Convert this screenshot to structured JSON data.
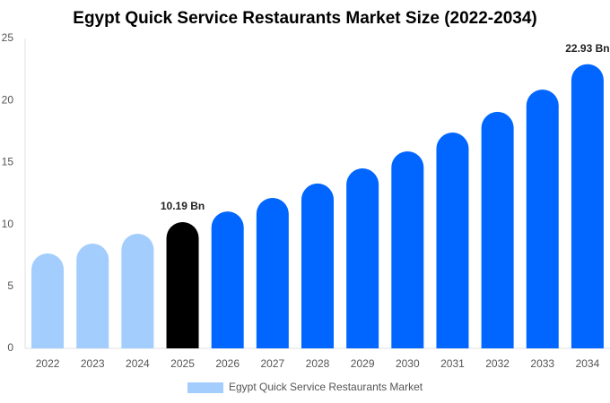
{
  "chart_data": {
    "type": "bar",
    "title": "Egypt Quick Service Restaurants Market Size (2022-2034)",
    "categories": [
      "2022",
      "2023",
      "2024",
      "2025",
      "2026",
      "2027",
      "2028",
      "2029",
      "2030",
      "2031",
      "2032",
      "2033",
      "2034"
    ],
    "series": [
      {
        "name": "Egypt Quick Service Restaurants Market",
        "color": "#a3cdfd",
        "values": [
          7.66,
          8.45,
          9.25,
          10.19,
          11.05,
          12.14,
          13.3,
          14.52,
          15.9,
          17.41,
          19.08,
          20.88,
          22.93
        ],
        "value_labels": [
          null,
          null,
          null,
          "10.19 Bn",
          null,
          null,
          null,
          null,
          null,
          null,
          null,
          null,
          "22.93 Bn"
        ],
        "colors": [
          "#a3cdfd",
          "#a3cdfd",
          "#a3cdfd",
          "#000000",
          "#0066ff",
          "#0066ff",
          "#0066ff",
          "#0066ff",
          "#0066ff",
          "#0066ff",
          "#0066ff",
          "#0066ff",
          "#0066ff"
        ]
      }
    ],
    "ylim": [
      0,
      25
    ],
    "yticks": [
      0,
      5,
      10,
      15,
      20,
      25
    ],
    "grid": false,
    "legend": "bottom"
  }
}
